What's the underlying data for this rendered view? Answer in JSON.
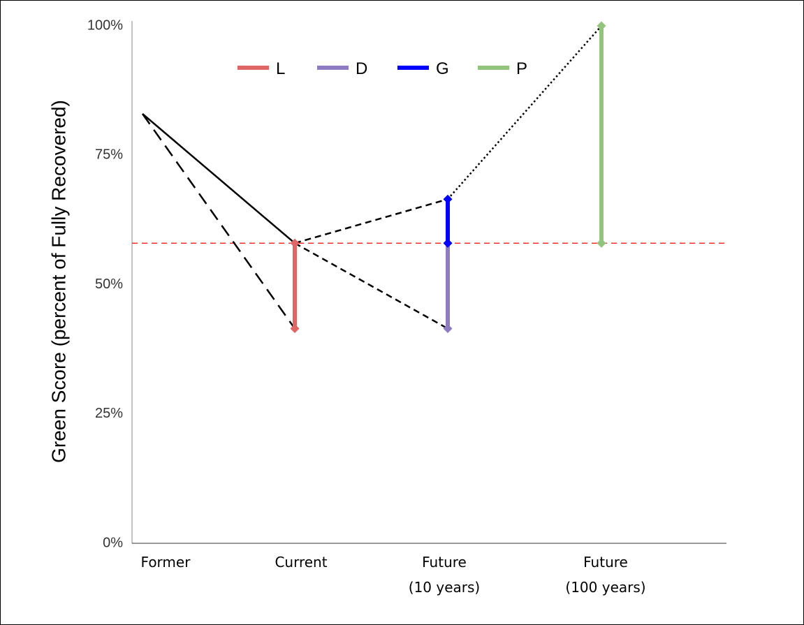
{
  "chart_data": {
    "type": "line",
    "title": "",
    "ylabel": "Green Score (percent of Fully Recovered)",
    "xlabel": "",
    "ylim": [
      0,
      100
    ],
    "y_ticks": [
      "0%",
      "25%",
      "50%",
      "75%",
      "100%"
    ],
    "y_tick_values": [
      0,
      25,
      50,
      75,
      100
    ],
    "x_positions": [
      0,
      1,
      2,
      3
    ],
    "categories": [
      {
        "line1": "Former",
        "line2": ""
      },
      {
        "line1": "Current",
        "line2": ""
      },
      {
        "line1": "Future",
        "line2": "(10 years)"
      },
      {
        "line1": "Future",
        "line2": "(100 years)"
      }
    ],
    "grid": false,
    "legend_position": "top-center",
    "reference_line": {
      "y": 58,
      "color": "#ff0000",
      "style": "dashed"
    },
    "trajectories": [
      {
        "style": "solid",
        "x": [
          0,
          1
        ],
        "y": [
          83,
          58
        ]
      },
      {
        "style": "long-dash",
        "x": [
          0,
          1
        ],
        "y": [
          83,
          41.5
        ]
      },
      {
        "style": "dash",
        "x": [
          1,
          2
        ],
        "y": [
          58,
          66.5
        ]
      },
      {
        "style": "dash",
        "x": [
          1,
          2
        ],
        "y": [
          58,
          41.5
        ]
      },
      {
        "style": "dotted",
        "x": [
          2,
          3
        ],
        "y": [
          66.5,
          100
        ]
      }
    ],
    "series": [
      {
        "name": "L",
        "color": "#e06666",
        "x": 1,
        "from": 58,
        "to": 41.5
      },
      {
        "name": "D",
        "color": "#8e7cc3",
        "x": 2,
        "from": 58,
        "to": 41.5
      },
      {
        "name": "G",
        "color": "#0000ff",
        "x": 2,
        "from": 58,
        "to": 66.5
      },
      {
        "name": "P",
        "color": "#93c47d",
        "x": 3,
        "from": 58,
        "to": 100
      }
    ]
  }
}
